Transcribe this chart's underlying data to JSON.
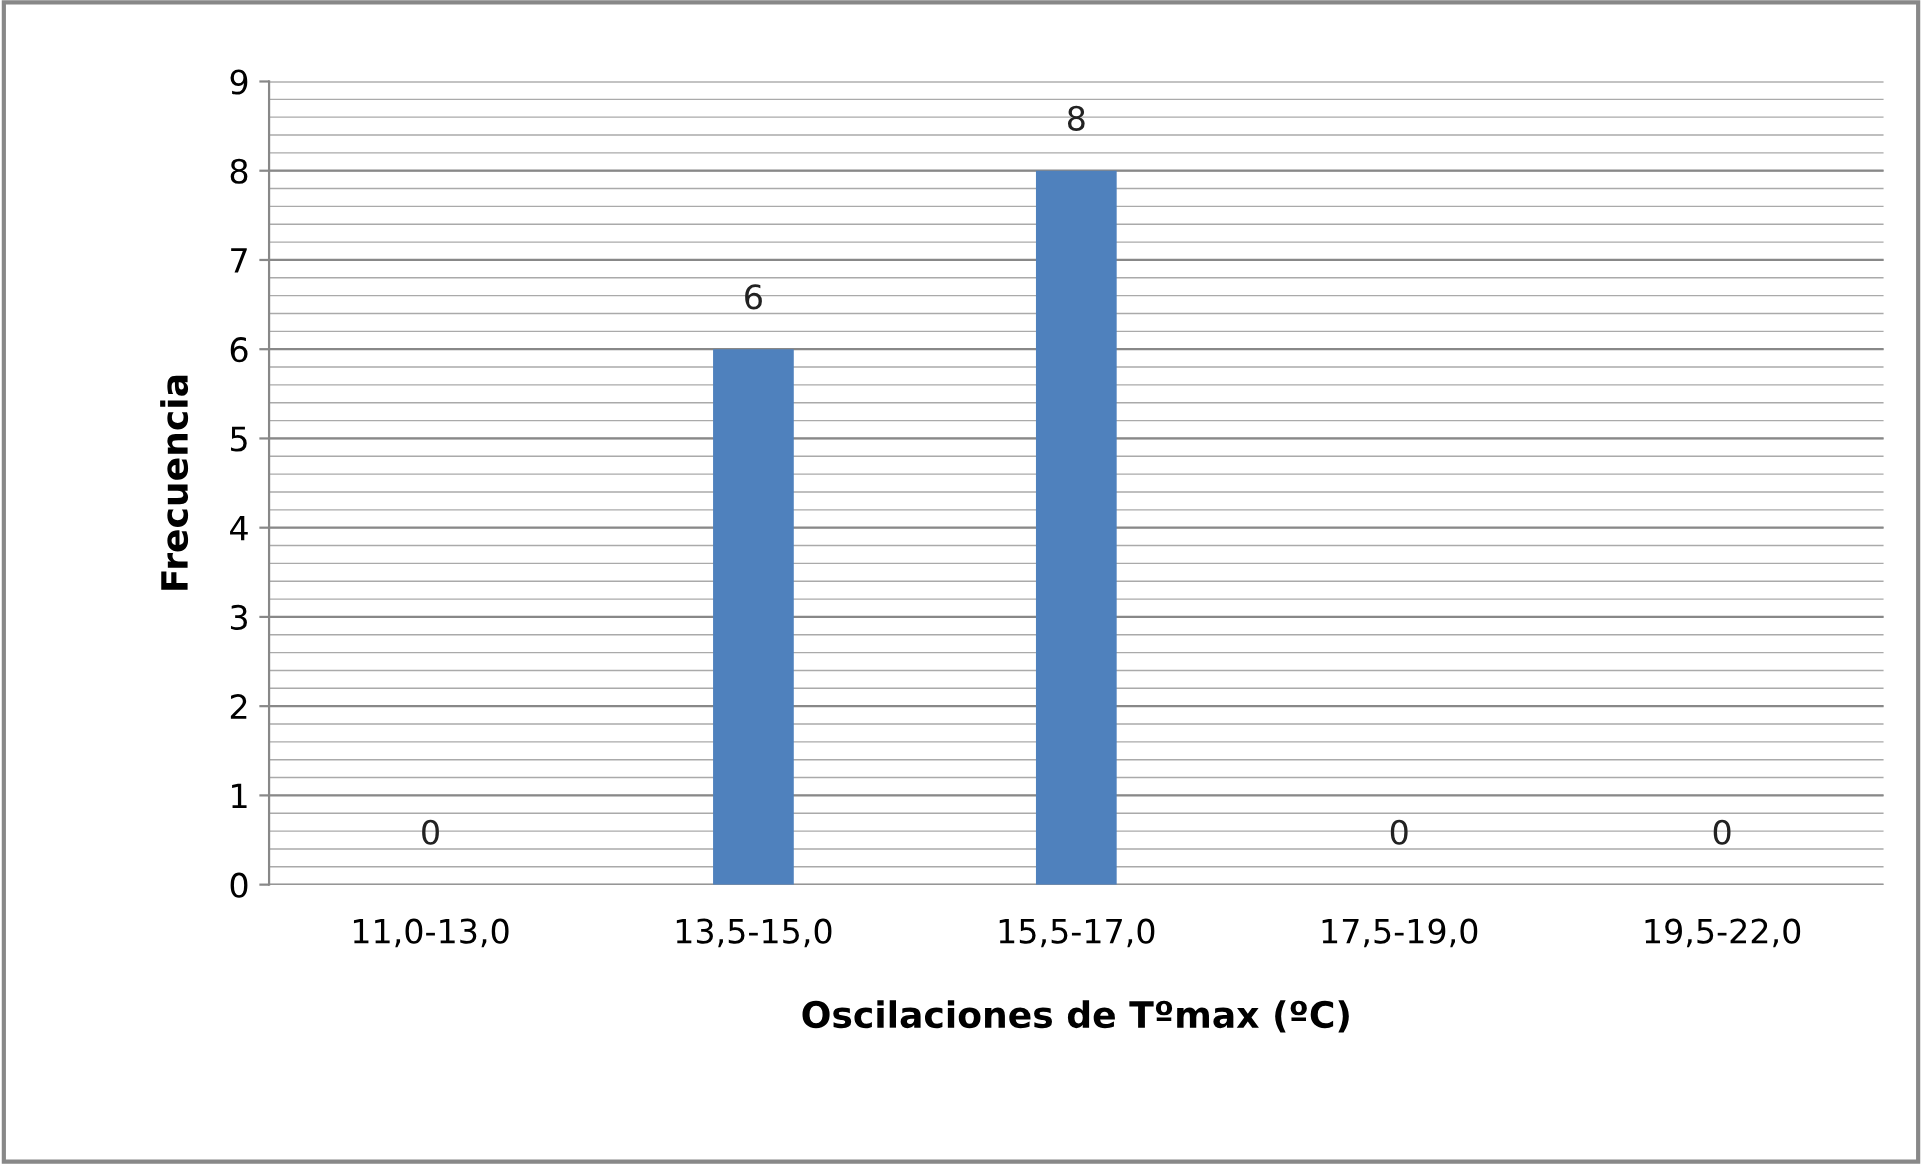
{
  "chart_data": {
    "type": "bar",
    "categories": [
      "11,0-13,0",
      "13,5-15,0",
      "15,5-17,0",
      "17,5-19,0",
      "19,5-22,0"
    ],
    "values": [
      0,
      6,
      8,
      0,
      0
    ],
    "color": "#4f81bd",
    "xlabel": "Oscilaciones de Tºmax (ºC)",
    "ylabel": "Frecuencia",
    "ylim": [
      0,
      9
    ],
    "yticks": [
      0,
      1,
      2,
      3,
      4,
      5,
      6,
      7,
      8,
      9
    ],
    "grid": "y",
    "data_labels": true
  }
}
